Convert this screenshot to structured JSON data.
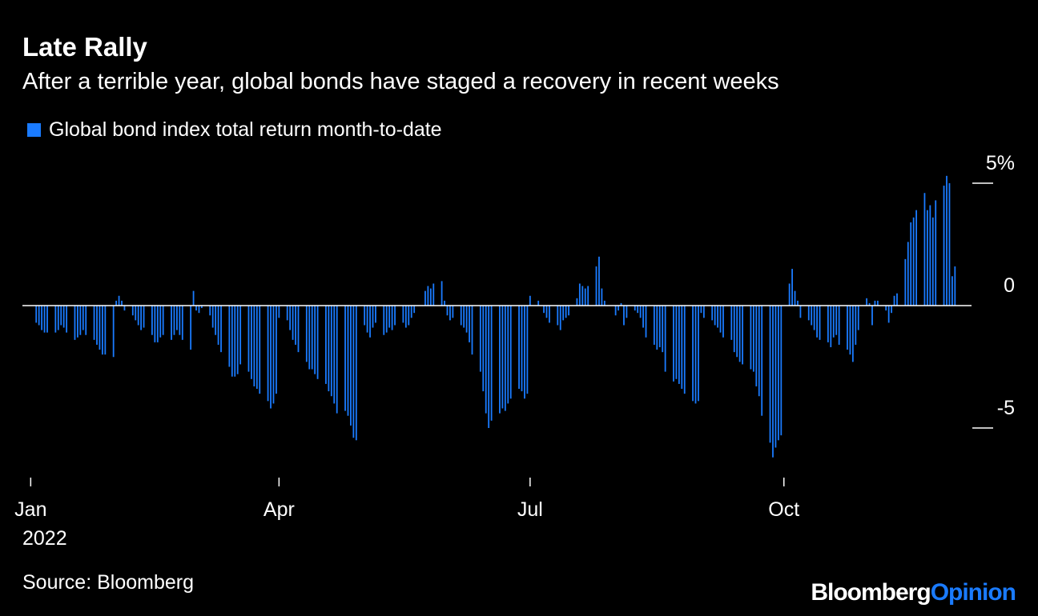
{
  "header": {
    "title": "Late Rally",
    "subtitle": "After a terrible year, global bonds have staged a recovery in recent weeks"
  },
  "footer": {
    "source": "Source: Bloomberg",
    "brand_primary": "Bloomberg",
    "brand_secondary": "Opinion"
  },
  "colors": {
    "background": "#000000",
    "bar": "#1a7bff",
    "text": "#ffffff",
    "zero_line": "#ffffff"
  },
  "chart_data": {
    "type": "bar",
    "legend": [
      "Global bond index total return month-to-date"
    ],
    "legend_position": "top-left",
    "grid": false,
    "x_ticks": [
      {
        "date": "2022-01-01",
        "label": "Jan",
        "sublabel": "2022"
      },
      {
        "date": "2022-04-01",
        "label": "Apr"
      },
      {
        "date": "2022-07-01",
        "label": "Jul"
      },
      {
        "date": "2022-10-01",
        "label": "Oct"
      }
    ],
    "y_ticks": [
      {
        "value": 5,
        "label": "5%"
      },
      {
        "value": 0,
        "label": "0"
      },
      {
        "value": -5,
        "label": "-5"
      }
    ],
    "ylim": [
      -7,
      5.6
    ],
    "xlim": [
      "2021-12-29",
      "2022-12-08"
    ],
    "series": [
      {
        "name": "Global bond index total return month-to-date",
        "dates": [
          "2022-01-03",
          "2022-01-04",
          "2022-01-05",
          "2022-01-06",
          "2022-01-07",
          "2022-01-10",
          "2022-01-11",
          "2022-01-12",
          "2022-01-13",
          "2022-01-14",
          "2022-01-17",
          "2022-01-18",
          "2022-01-19",
          "2022-01-20",
          "2022-01-21",
          "2022-01-24",
          "2022-01-25",
          "2022-01-26",
          "2022-01-27",
          "2022-01-28",
          "2022-01-31",
          "2022-02-01",
          "2022-02-02",
          "2022-02-03",
          "2022-02-04",
          "2022-02-07",
          "2022-02-08",
          "2022-02-09",
          "2022-02-10",
          "2022-02-11",
          "2022-02-14",
          "2022-02-15",
          "2022-02-16",
          "2022-02-17",
          "2022-02-18",
          "2022-02-21",
          "2022-02-22",
          "2022-02-23",
          "2022-02-24",
          "2022-02-25",
          "2022-02-28",
          "2022-03-01",
          "2022-03-02",
          "2022-03-03",
          "2022-03-04",
          "2022-03-07",
          "2022-03-08",
          "2022-03-09",
          "2022-03-10",
          "2022-03-11",
          "2022-03-14",
          "2022-03-15",
          "2022-03-16",
          "2022-03-17",
          "2022-03-18",
          "2022-03-21",
          "2022-03-22",
          "2022-03-23",
          "2022-03-24",
          "2022-03-25",
          "2022-03-28",
          "2022-03-29",
          "2022-03-30",
          "2022-03-31",
          "2022-04-01",
          "2022-04-04",
          "2022-04-05",
          "2022-04-06",
          "2022-04-07",
          "2022-04-08",
          "2022-04-11",
          "2022-04-12",
          "2022-04-13",
          "2022-04-14",
          "2022-04-15",
          "2022-04-18",
          "2022-04-19",
          "2022-04-20",
          "2022-04-21",
          "2022-04-22",
          "2022-04-25",
          "2022-04-26",
          "2022-04-27",
          "2022-04-28",
          "2022-04-29",
          "2022-05-02",
          "2022-05-03",
          "2022-05-04",
          "2022-05-05",
          "2022-05-06",
          "2022-05-09",
          "2022-05-10",
          "2022-05-11",
          "2022-05-12",
          "2022-05-13",
          "2022-05-16",
          "2022-05-17",
          "2022-05-18",
          "2022-05-19",
          "2022-05-20",
          "2022-05-23",
          "2022-05-24",
          "2022-05-25",
          "2022-05-26",
          "2022-05-27",
          "2022-05-30",
          "2022-05-31",
          "2022-06-01",
          "2022-06-02",
          "2022-06-03",
          "2022-06-06",
          "2022-06-07",
          "2022-06-08",
          "2022-06-09",
          "2022-06-10",
          "2022-06-13",
          "2022-06-14",
          "2022-06-15",
          "2022-06-16",
          "2022-06-17",
          "2022-06-20",
          "2022-06-21",
          "2022-06-22",
          "2022-06-23",
          "2022-06-24",
          "2022-06-27",
          "2022-06-28",
          "2022-06-29",
          "2022-06-30",
          "2022-07-01",
          "2022-07-04",
          "2022-07-05",
          "2022-07-06",
          "2022-07-07",
          "2022-07-08",
          "2022-07-11",
          "2022-07-12",
          "2022-07-13",
          "2022-07-14",
          "2022-07-15",
          "2022-07-18",
          "2022-07-19",
          "2022-07-20",
          "2022-07-21",
          "2022-07-22",
          "2022-07-25",
          "2022-07-26",
          "2022-07-27",
          "2022-07-28",
          "2022-07-29",
          "2022-08-01",
          "2022-08-02",
          "2022-08-03",
          "2022-08-04",
          "2022-08-05",
          "2022-08-08",
          "2022-08-09",
          "2022-08-10",
          "2022-08-11",
          "2022-08-12",
          "2022-08-15",
          "2022-08-16",
          "2022-08-17",
          "2022-08-18",
          "2022-08-19",
          "2022-08-22",
          "2022-08-23",
          "2022-08-24",
          "2022-08-25",
          "2022-08-26",
          "2022-08-29",
          "2022-08-30",
          "2022-08-31",
          "2022-09-01",
          "2022-09-02",
          "2022-09-05",
          "2022-09-06",
          "2022-09-07",
          "2022-09-08",
          "2022-09-09",
          "2022-09-12",
          "2022-09-13",
          "2022-09-14",
          "2022-09-15",
          "2022-09-16",
          "2022-09-19",
          "2022-09-20",
          "2022-09-21",
          "2022-09-22",
          "2022-09-23",
          "2022-09-26",
          "2022-09-27",
          "2022-09-28",
          "2022-09-29",
          "2022-09-30",
          "2022-10-03",
          "2022-10-04",
          "2022-10-05",
          "2022-10-06",
          "2022-10-07",
          "2022-10-10",
          "2022-10-11",
          "2022-10-12",
          "2022-10-13",
          "2022-10-14",
          "2022-10-17",
          "2022-10-18",
          "2022-10-19",
          "2022-10-20",
          "2022-10-21",
          "2022-10-24",
          "2022-10-25",
          "2022-10-26",
          "2022-10-27",
          "2022-10-28",
          "2022-10-31",
          "2022-11-01",
          "2022-11-02",
          "2022-11-03",
          "2022-11-04",
          "2022-11-07",
          "2022-11-08",
          "2022-11-09",
          "2022-11-10",
          "2022-11-11",
          "2022-11-14",
          "2022-11-15",
          "2022-11-16",
          "2022-11-17",
          "2022-11-18",
          "2022-11-21",
          "2022-11-22",
          "2022-11-23",
          "2022-11-24",
          "2022-11-25",
          "2022-11-28",
          "2022-11-29",
          "2022-11-30",
          "2022-12-01",
          "2022-12-02"
        ],
        "values": [
          -0.7,
          -0.8,
          -1.0,
          -1.1,
          -1.1,
          -1.1,
          -1.0,
          -0.8,
          -0.9,
          -1.1,
          -1.4,
          -1.3,
          -1.2,
          -1.0,
          -1.2,
          -1.4,
          -1.6,
          -1.8,
          -2.0,
          -2.0,
          -2.1,
          0.2,
          0.4,
          0.2,
          -0.2,
          -0.4,
          -0.6,
          -0.8,
          -1.0,
          -0.9,
          -1.2,
          -1.5,
          -1.5,
          -1.3,
          -1.2,
          -1.4,
          -1.2,
          -1.0,
          -1.2,
          -1.4,
          -1.8,
          0.6,
          -0.2,
          -0.3,
          -0.1,
          -0.4,
          -0.9,
          -1.2,
          -1.6,
          -1.9,
          -2.5,
          -2.9,
          -2.9,
          -2.8,
          -2.4,
          -2.7,
          -3.0,
          -3.3,
          -3.4,
          -3.6,
          -3.9,
          -4.2,
          -4.0,
          -3.6,
          -0.5,
          -0.6,
          -1.0,
          -1.4,
          -1.6,
          -1.9,
          -2.3,
          -2.6,
          -2.6,
          -2.8,
          -3.0,
          -3.2,
          -3.5,
          -3.7,
          -4.0,
          -4.4,
          -4.3,
          -4.5,
          -4.9,
          -5.4,
          -5.5,
          -0.8,
          -1.1,
          -1.3,
          -0.9,
          -0.7,
          -1.2,
          -1.1,
          -0.9,
          -1.0,
          -0.8,
          -0.7,
          -0.9,
          -0.8,
          -0.5,
          -0.3,
          0.0,
          0.6,
          0.8,
          0.7,
          0.9,
          1.0,
          0.2,
          -0.4,
          -0.6,
          -0.5,
          -0.8,
          -0.9,
          -1.1,
          -1.5,
          -2.0,
          -2.7,
          -3.5,
          -4.4,
          -5.0,
          -4.7,
          -4.4,
          -4.2,
          -4.3,
          -4.0,
          -3.8,
          -3.4,
          -3.5,
          -3.8,
          -3.6,
          0.4,
          0.2,
          0.0,
          -0.3,
          -0.5,
          -0.7,
          -0.8,
          -1.0,
          -0.6,
          -0.5,
          -0.4,
          0.3,
          0.9,
          0.8,
          0.7,
          0.8,
          1.6,
          2.0,
          0.7,
          0.2,
          0.0,
          -0.4,
          -0.2,
          0.1,
          -0.8,
          -0.5,
          -0.2,
          -0.3,
          -0.5,
          -0.9,
          -1.3,
          -1.6,
          -1.8,
          -1.7,
          -1.9,
          -2.7,
          -3.1,
          -3.0,
          -3.2,
          -3.4,
          -3.6,
          -3.9,
          -4.0,
          -3.9,
          -0.3,
          -0.5,
          -0.6,
          -0.8,
          -0.9,
          -1.1,
          -1.3,
          -1.4,
          -1.9,
          -2.1,
          -2.3,
          -2.4,
          -2.6,
          -2.7,
          -3.3,
          -3.7,
          -4.5,
          -5.6,
          -6.2,
          -5.8,
          -5.5,
          -5.3,
          0.9,
          1.5,
          0.6,
          0.2,
          -0.5,
          -0.6,
          -0.8,
          -1.0,
          -1.3,
          -1.4,
          -1.5,
          -1.7,
          -1.3,
          -1.2,
          -1.6,
          -1.8,
          -2.0,
          -2.3,
          -1.6,
          -1.0,
          0.3,
          0.1,
          -0.8,
          0.2,
          0.2,
          -0.2,
          -0.7,
          -0.3,
          0.4,
          0.5,
          1.9,
          2.6,
          3.4,
          3.6,
          3.9,
          4.6,
          3.9,
          4.1,
          3.6,
          4.3,
          4.9,
          5.3,
          5.0,
          1.2,
          1.6
        ]
      }
    ]
  }
}
